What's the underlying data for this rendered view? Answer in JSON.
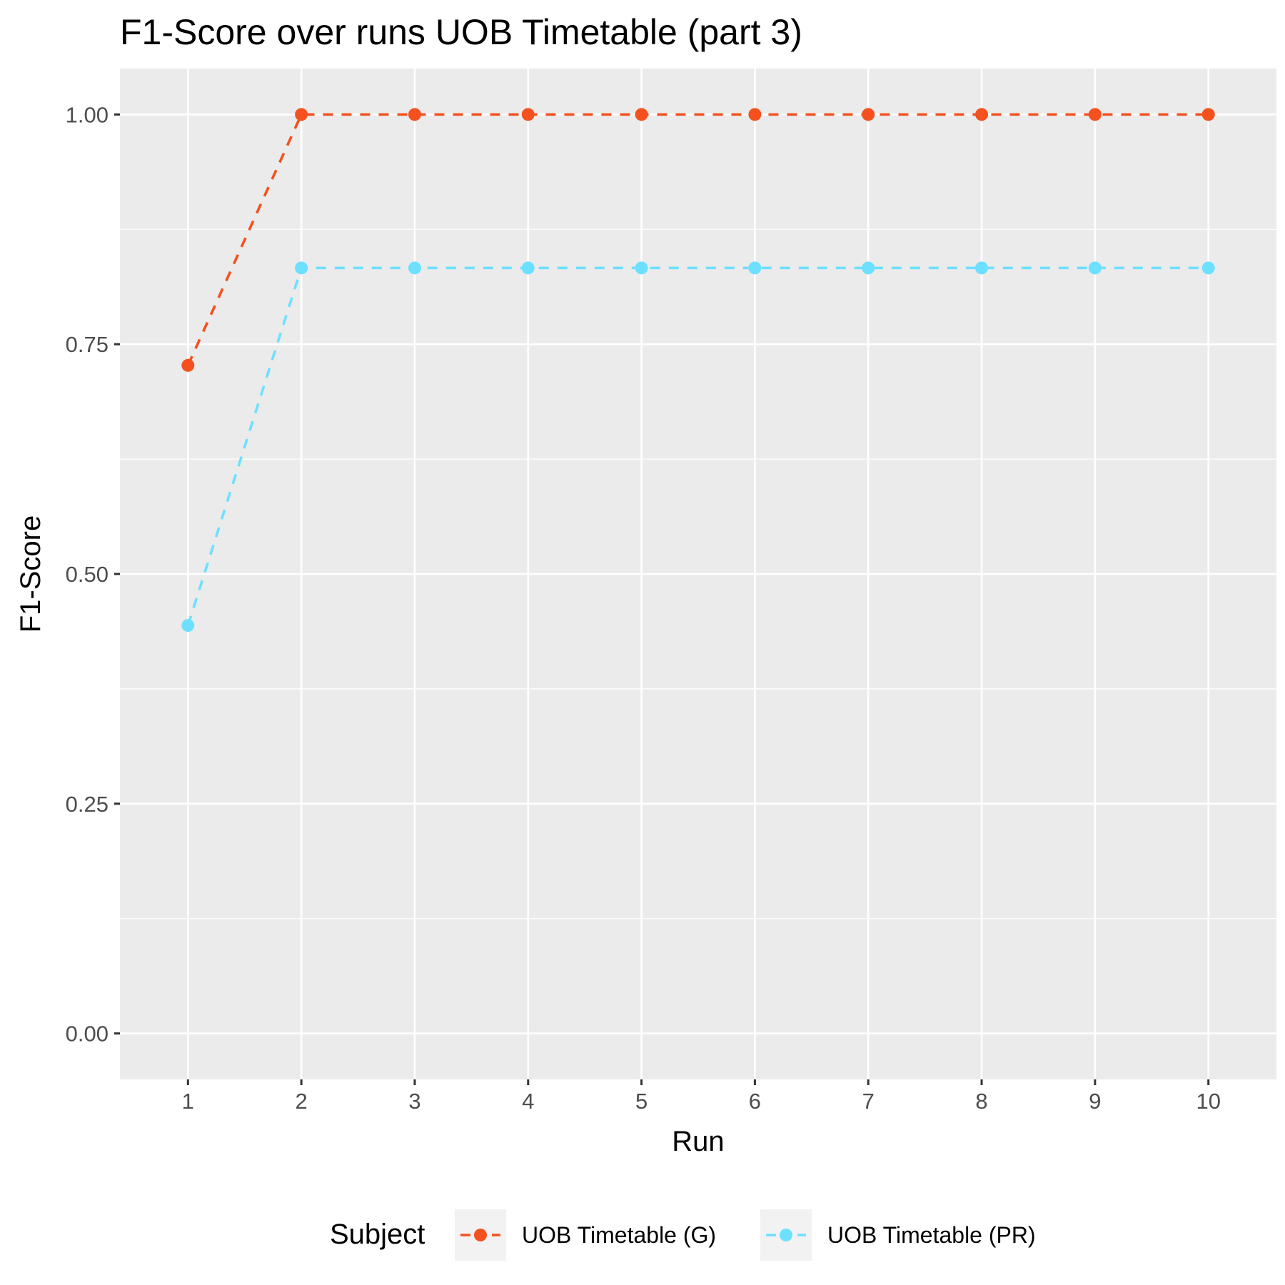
{
  "chart_data": {
    "type": "line",
    "title": "F1-Score over runs UOB Timetable (part 3)",
    "xlabel": "Run",
    "ylabel": "F1-Score",
    "x": [
      1,
      2,
      3,
      4,
      5,
      6,
      7,
      8,
      9,
      10
    ],
    "x_tick_labels": [
      "1",
      "2",
      "3",
      "4",
      "5",
      "6",
      "7",
      "8",
      "9",
      "10"
    ],
    "y_ticks": [
      0,
      0.25,
      0.5,
      0.75,
      1
    ],
    "y_tick_labels": [
      "0.00",
      "0.25",
      "0.50",
      "0.75",
      "1.00"
    ],
    "xlim": [
      0.4,
      10.6
    ],
    "ylim": [
      -0.05,
      1.05
    ],
    "grid": true,
    "legend": {
      "title": "Subject",
      "position": "bottom"
    },
    "series": [
      {
        "name": "UOB Timetable (G)",
        "color": "#F4511E",
        "line_style": "dashed",
        "values": [
          0.727,
          1.0,
          1.0,
          1.0,
          1.0,
          1.0,
          1.0,
          1.0,
          1.0,
          1.0
        ]
      },
      {
        "name": "UOB Timetable (PR)",
        "color": "#6EE0FF",
        "line_style": "dashed",
        "values": [
          0.444,
          0.833,
          0.833,
          0.833,
          0.833,
          0.833,
          0.833,
          0.833,
          0.833,
          0.833
        ]
      }
    ]
  }
}
